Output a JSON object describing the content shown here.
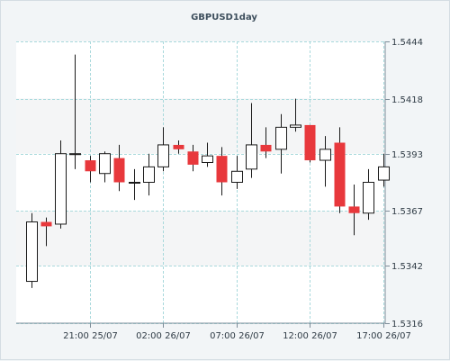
{
  "chart_data": {
    "type": "candlestick",
    "title": "GBPUSD1day",
    "y_ticks": [
      "1.5444",
      "1.5418",
      "1.5393",
      "1.5367",
      "1.5342",
      "1.5316"
    ],
    "x_ticks": [
      "21:00 25/07",
      "02:00 26/07",
      "07:00 26/07",
      "12:00 26/07",
      "17:00 26/07"
    ],
    "ylim": [
      1.5316,
      1.5444
    ],
    "grid": true,
    "colors": {
      "up": "#ffffff",
      "down": "#e8383c",
      "outline": "#1a1a1a",
      "grid": "#a9d9dc"
    },
    "candles": [
      {
        "o": 1.5335,
        "h": 1.5366,
        "l": 1.5332,
        "c": 1.5362
      },
      {
        "o": 1.5362,
        "h": 1.5364,
        "l": 1.5351,
        "c": 1.536
      },
      {
        "o": 1.5361,
        "h": 1.5399,
        "l": 1.5359,
        "c": 1.5393
      },
      {
        "o": 1.5393,
        "h": 1.5438,
        "l": 1.5386,
        "c": 1.5393
      },
      {
        "o": 1.539,
        "h": 1.5392,
        "l": 1.538,
        "c": 1.5385
      },
      {
        "o": 1.5384,
        "h": 1.5394,
        "l": 1.538,
        "c": 1.5393
      },
      {
        "o": 1.5391,
        "h": 1.5397,
        "l": 1.5376,
        "c": 1.538
      },
      {
        "o": 1.538,
        "h": 1.5386,
        "l": 1.5372,
        "c": 1.538
      },
      {
        "o": 1.538,
        "h": 1.5393,
        "l": 1.5374,
        "c": 1.5387
      },
      {
        "o": 1.5387,
        "h": 1.5405,
        "l": 1.5385,
        "c": 1.5397
      },
      {
        "o": 1.5397,
        "h": 1.5399,
        "l": 1.5393,
        "c": 1.5395
      },
      {
        "o": 1.5394,
        "h": 1.5397,
        "l": 1.5385,
        "c": 1.5388
      },
      {
        "o": 1.5389,
        "h": 1.5398,
        "l": 1.5387,
        "c": 1.5392
      },
      {
        "o": 1.5392,
        "h": 1.5396,
        "l": 1.5374,
        "c": 1.538
      },
      {
        "o": 1.538,
        "h": 1.5392,
        "l": 1.5377,
        "c": 1.5385
      },
      {
        "o": 1.5386,
        "h": 1.5416,
        "l": 1.5382,
        "c": 1.5397
      },
      {
        "o": 1.5397,
        "h": 1.5405,
        "l": 1.5391,
        "c": 1.5394
      },
      {
        "o": 1.5395,
        "h": 1.5411,
        "l": 1.5384,
        "c": 1.5405
      },
      {
        "o": 1.5405,
        "h": 1.5418,
        "l": 1.5403,
        "c": 1.5406
      },
      {
        "o": 1.5406,
        "h": 1.5406,
        "l": 1.5389,
        "c": 1.539
      },
      {
        "o": 1.539,
        "h": 1.5401,
        "l": 1.5378,
        "c": 1.5395
      },
      {
        "o": 1.5398,
        "h": 1.5405,
        "l": 1.5366,
        "c": 1.5369
      },
      {
        "o": 1.5369,
        "h": 1.5379,
        "l": 1.5356,
        "c": 1.5366
      },
      {
        "o": 1.5366,
        "h": 1.5386,
        "l": 1.5363,
        "c": 1.538
      },
      {
        "o": 1.5381,
        "h": 1.5393,
        "l": 1.5378,
        "c": 1.5387
      }
    ]
  }
}
